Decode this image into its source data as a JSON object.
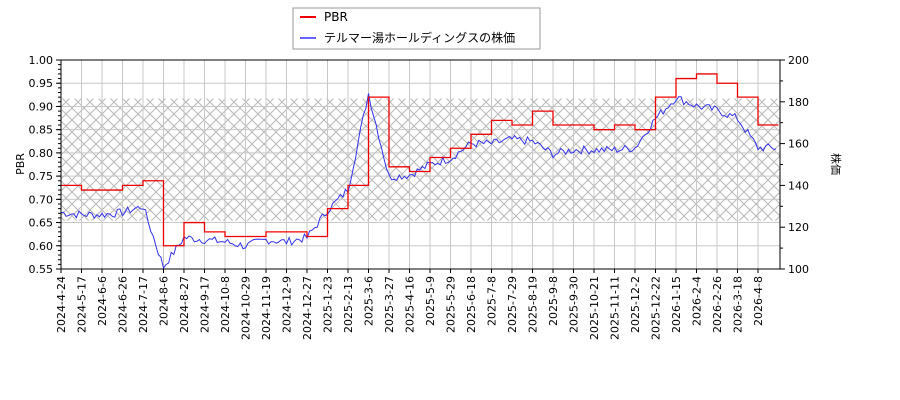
{
  "legend": {
    "items": [
      {
        "label": "PBR",
        "color": "#ff0000"
      },
      {
        "label": "テルマー湯ホールディングスの株価",
        "color": "#5555ff"
      }
    ]
  },
  "axes": {
    "left_label": "PBR",
    "right_label": "株価",
    "left_ticks": [
      "1.00",
      "0.95",
      "0.90",
      "0.85",
      "0.80",
      "0.75",
      "0.70",
      "0.65",
      "0.60",
      "0.55"
    ],
    "right_ticks": [
      "200",
      "180",
      "160",
      "140",
      "120",
      "100"
    ],
    "x_ticks": [
      "2024-4-24",
      "2024-5-17",
      "2024-6-6",
      "2024-6-26",
      "2024-7-17",
      "2024-8-6",
      "2024-8-27",
      "2024-9-17",
      "2024-10-8",
      "2024-10-29",
      "2024-11-19",
      "2024-12-9",
      "2024-12-27",
      "2025-1-23",
      "2025-2-13",
      "2025-3-6",
      "2025-3-27",
      "2025-4-16",
      "2025-5-9",
      "2025-5-29",
      "2025-6-18",
      "2025-7-8",
      "2025-7-29",
      "2025-8-19",
      "2025-9-8",
      "2025-9-30",
      "2025-10-21",
      "2025-11-11",
      "2025-12-2",
      "2025-12-22",
      "2026-1-15",
      "2026-2-4",
      "2026-2-26",
      "2026-3-18",
      "2026-4-8"
    ]
  },
  "chart_data": {
    "type": "line",
    "title": "",
    "xlabel": "",
    "ylabel": "PBR",
    "ylabel_right": "株価",
    "ylim": [
      0.55,
      1.0
    ],
    "ylim_right": [
      100,
      200
    ],
    "grid": true,
    "legend_position": "top-center",
    "shaded_band_pbr": [
      0.654,
      0.917
    ],
    "categories": [
      "2024-4-24",
      "2024-5-17",
      "2024-6-6",
      "2024-6-26",
      "2024-7-17",
      "2024-8-6",
      "2024-8-27",
      "2024-9-17",
      "2024-10-8",
      "2024-10-29",
      "2024-11-19",
      "2024-12-9",
      "2024-12-27",
      "2025-1-23",
      "2025-2-13",
      "2025-3-6",
      "2025-3-27",
      "2025-4-16",
      "2025-5-9",
      "2025-5-29",
      "2025-6-18",
      "2025-7-8",
      "2025-7-29",
      "2025-8-19",
      "2025-9-8",
      "2025-9-30",
      "2025-10-21",
      "2025-11-11",
      "2025-12-2",
      "2025-12-22",
      "2026-1-15",
      "2026-2-4",
      "2026-2-26",
      "2026-3-18",
      "2026-4-8"
    ],
    "series": [
      {
        "name": "PBR",
        "axis": "left",
        "color": "#ff0000",
        "values": [
          0.73,
          0.72,
          0.72,
          0.73,
          0.74,
          0.6,
          0.65,
          0.63,
          0.62,
          0.62,
          0.63,
          0.63,
          0.62,
          0.68,
          0.73,
          0.92,
          0.77,
          0.76,
          0.79,
          0.81,
          0.84,
          0.87,
          0.86,
          0.89,
          0.86,
          0.86,
          0.85,
          0.86,
          0.85,
          0.92,
          0.96,
          0.97,
          0.95,
          0.92,
          0.86
        ]
      },
      {
        "name": "テルマー湯ホールディングスの株価",
        "axis": "right",
        "color": "#5555ff",
        "values": [
          127,
          126,
          126,
          127,
          130,
          101,
          115,
          114,
          113,
          111,
          114,
          113,
          115,
          128,
          138,
          184,
          144,
          145,
          150,
          153,
          160,
          160,
          162,
          161,
          155,
          157,
          157,
          157,
          158,
          172,
          182,
          178,
          176,
          172,
          158
        ]
      }
    ]
  }
}
